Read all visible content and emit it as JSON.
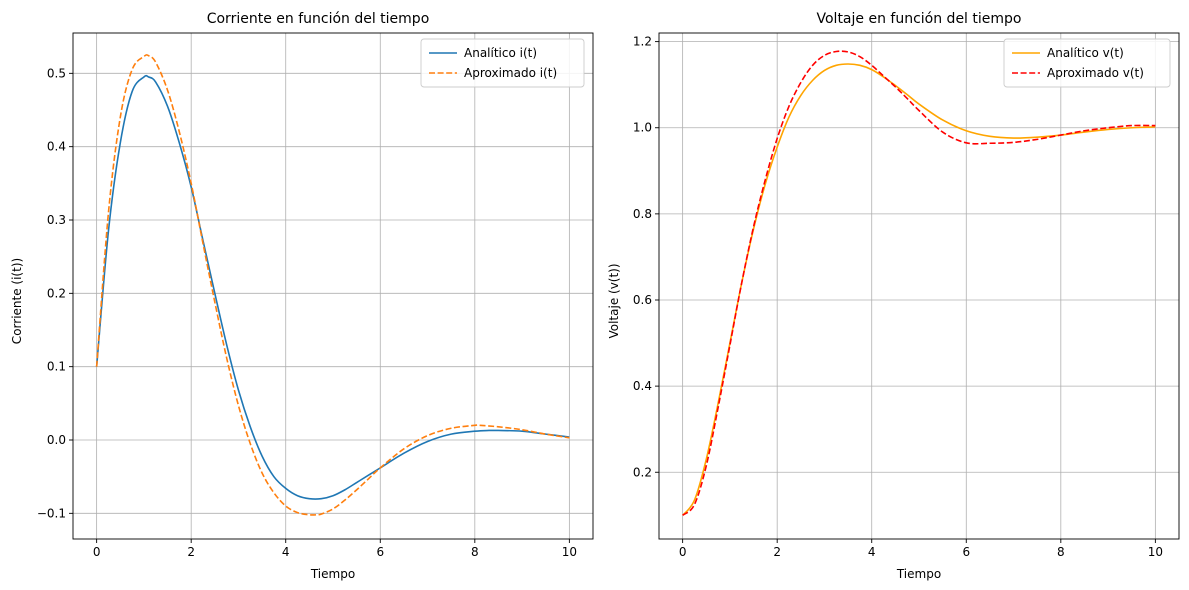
{
  "chart_data": [
    {
      "type": "line",
      "title": "Corriente en función del tiempo",
      "xlabel": "Tiempo",
      "ylabel": "Corriente (i(t))",
      "xlim": [
        -0.5,
        10.5
      ],
      "ylim": [
        -0.135,
        0.555
      ],
      "xticks": [
        0,
        2,
        4,
        6,
        8,
        10
      ],
      "yticks": [
        -0.1,
        0.0,
        0.1,
        0.2,
        0.3,
        0.4,
        0.5
      ],
      "ytick_labels": [
        "−0.1",
        "0.0",
        "0.1",
        "0.2",
        "0.3",
        "0.4",
        "0.5"
      ],
      "grid": true,
      "legend_position": "top-right",
      "series": [
        {
          "name": "Analítico i(t)",
          "color": "#1f77b4",
          "style": "solid",
          "x": [
            0,
            0.25,
            0.5,
            0.75,
            1.0,
            1.1,
            1.25,
            1.5,
            1.75,
            2.0,
            2.25,
            2.5,
            2.75,
            3.0,
            3.25,
            3.5,
            3.75,
            4.0,
            4.25,
            4.5,
            4.75,
            5.0,
            5.25,
            5.5,
            5.75,
            6.0,
            6.5,
            7.0,
            7.5,
            8.0,
            8.3,
            8.5,
            9.0,
            9.5,
            10.0
          ],
          "y": [
            0.1,
            0.285,
            0.405,
            0.475,
            0.495,
            0.495,
            0.488,
            0.455,
            0.405,
            0.345,
            0.272,
            0.2,
            0.13,
            0.068,
            0.018,
            -0.022,
            -0.05,
            -0.066,
            -0.076,
            -0.08,
            -0.08,
            -0.076,
            -0.068,
            -0.058,
            -0.048,
            -0.038,
            -0.018,
            -0.002,
            0.008,
            0.012,
            0.013,
            0.013,
            0.012,
            0.008,
            0.004
          ]
        },
        {
          "name": "Aproximado i(t)",
          "color": "#ff7f0e",
          "style": "dashed",
          "x": [
            0,
            0.25,
            0.5,
            0.75,
            1.0,
            1.1,
            1.25,
            1.5,
            1.75,
            2.0,
            2.25,
            2.5,
            2.75,
            3.0,
            3.25,
            3.5,
            3.75,
            4.0,
            4.25,
            4.5,
            4.65,
            4.75,
            5.0,
            5.25,
            5.5,
            5.75,
            6.0,
            6.5,
            7.0,
            7.5,
            8.0,
            8.1,
            8.5,
            9.0,
            9.5,
            10.0
          ],
          "y": [
            0.1,
            0.31,
            0.44,
            0.505,
            0.523,
            0.524,
            0.515,
            0.477,
            0.42,
            0.35,
            0.268,
            0.188,
            0.112,
            0.047,
            -0.005,
            -0.045,
            -0.072,
            -0.09,
            -0.099,
            -0.102,
            -0.102,
            -0.101,
            -0.094,
            -0.082,
            -0.068,
            -0.053,
            -0.038,
            -0.012,
            0.006,
            0.016,
            0.02,
            0.02,
            0.018,
            0.014,
            0.008,
            0.003
          ]
        }
      ]
    },
    {
      "type": "line",
      "title": "Voltaje en función del tiempo",
      "xlabel": "Tiempo",
      "ylabel": "Voltaje (v(t))",
      "xlim": [
        -0.5,
        10.5
      ],
      "ylim": [
        0.045,
        1.22
      ],
      "xticks": [
        0,
        2,
        4,
        6,
        8,
        10
      ],
      "yticks": [
        0.2,
        0.4,
        0.6,
        0.8,
        1.0,
        1.2
      ],
      "ytick_labels": [
        "0.2",
        "0.4",
        "0.6",
        "0.8",
        "1.0",
        "1.2"
      ],
      "grid": true,
      "legend_position": "top-right",
      "series": [
        {
          "name": "Analítico v(t)",
          "color": "#ffa500",
          "style": "solid",
          "x": [
            0,
            0.25,
            0.5,
            0.75,
            1.0,
            1.25,
            1.5,
            1.75,
            2.0,
            2.25,
            2.5,
            2.75,
            3.0,
            3.25,
            3.5,
            3.75,
            4.0,
            4.25,
            4.5,
            4.75,
            5.0,
            5.5,
            6.0,
            6.5,
            7.0,
            7.5,
            8.0,
            8.5,
            9.0,
            9.5,
            10.0
          ],
          "y": [
            0.1,
            0.135,
            0.23,
            0.36,
            0.5,
            0.64,
            0.765,
            0.87,
            0.955,
            1.025,
            1.075,
            1.11,
            1.133,
            1.145,
            1.148,
            1.145,
            1.135,
            1.118,
            1.098,
            1.077,
            1.055,
            1.018,
            0.993,
            0.98,
            0.976,
            0.978,
            0.983,
            0.99,
            0.996,
            1.0,
            1.002
          ]
        },
        {
          "name": "Aproximado v(t)",
          "color": "#ff0000",
          "style": "dashed",
          "x": [
            0,
            0.25,
            0.5,
            0.75,
            1.0,
            1.25,
            1.5,
            1.75,
            2.0,
            2.25,
            2.5,
            2.75,
            3.0,
            3.25,
            3.5,
            3.75,
            4.0,
            4.25,
            4.5,
            4.75,
            5.0,
            5.5,
            6.0,
            6.5,
            7.0,
            7.5,
            8.0,
            8.5,
            9.0,
            9.5,
            10.0
          ],
          "y": [
            0.1,
            0.125,
            0.215,
            0.35,
            0.495,
            0.64,
            0.77,
            0.88,
            0.975,
            1.05,
            1.105,
            1.145,
            1.168,
            1.177,
            1.176,
            1.165,
            1.145,
            1.12,
            1.095,
            1.068,
            1.04,
            0.99,
            0.965,
            0.964,
            0.966,
            0.973,
            0.983,
            0.993,
            1.0,
            1.005,
            1.005
          ]
        }
      ]
    }
  ]
}
